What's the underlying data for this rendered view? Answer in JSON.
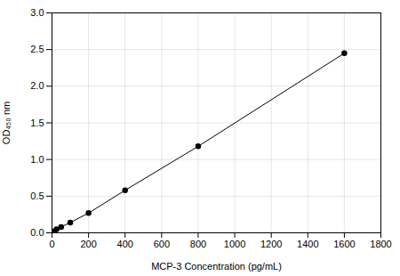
{
  "chart_data": {
    "type": "line",
    "x": [
      0,
      12.5,
      25,
      50,
      100,
      200,
      400,
      800,
      1600
    ],
    "values": [
      0.0,
      0.02,
      0.05,
      0.08,
      0.14,
      0.27,
      0.58,
      1.18,
      2.45
    ],
    "xlabel": "MCP-3 Concentration (pg/mL)",
    "ylabel": "OD₄₅₀ nm",
    "xlim": [
      0,
      1800
    ],
    "ylim": [
      0,
      3
    ],
    "xticks": [
      0,
      200,
      400,
      600,
      800,
      1000,
      1200,
      1400,
      1600,
      1800
    ],
    "yticks": [
      {
        "value": 0,
        "label": "0.0"
      },
      0.5,
      {
        "value": 1,
        "label": "1.0"
      },
      1.5,
      {
        "value": 2,
        "label": "2.0"
      },
      2.5,
      {
        "value": 3,
        "label": "3.0"
      }
    ],
    "color": "#000000",
    "marker": "circle",
    "grid": true
  }
}
